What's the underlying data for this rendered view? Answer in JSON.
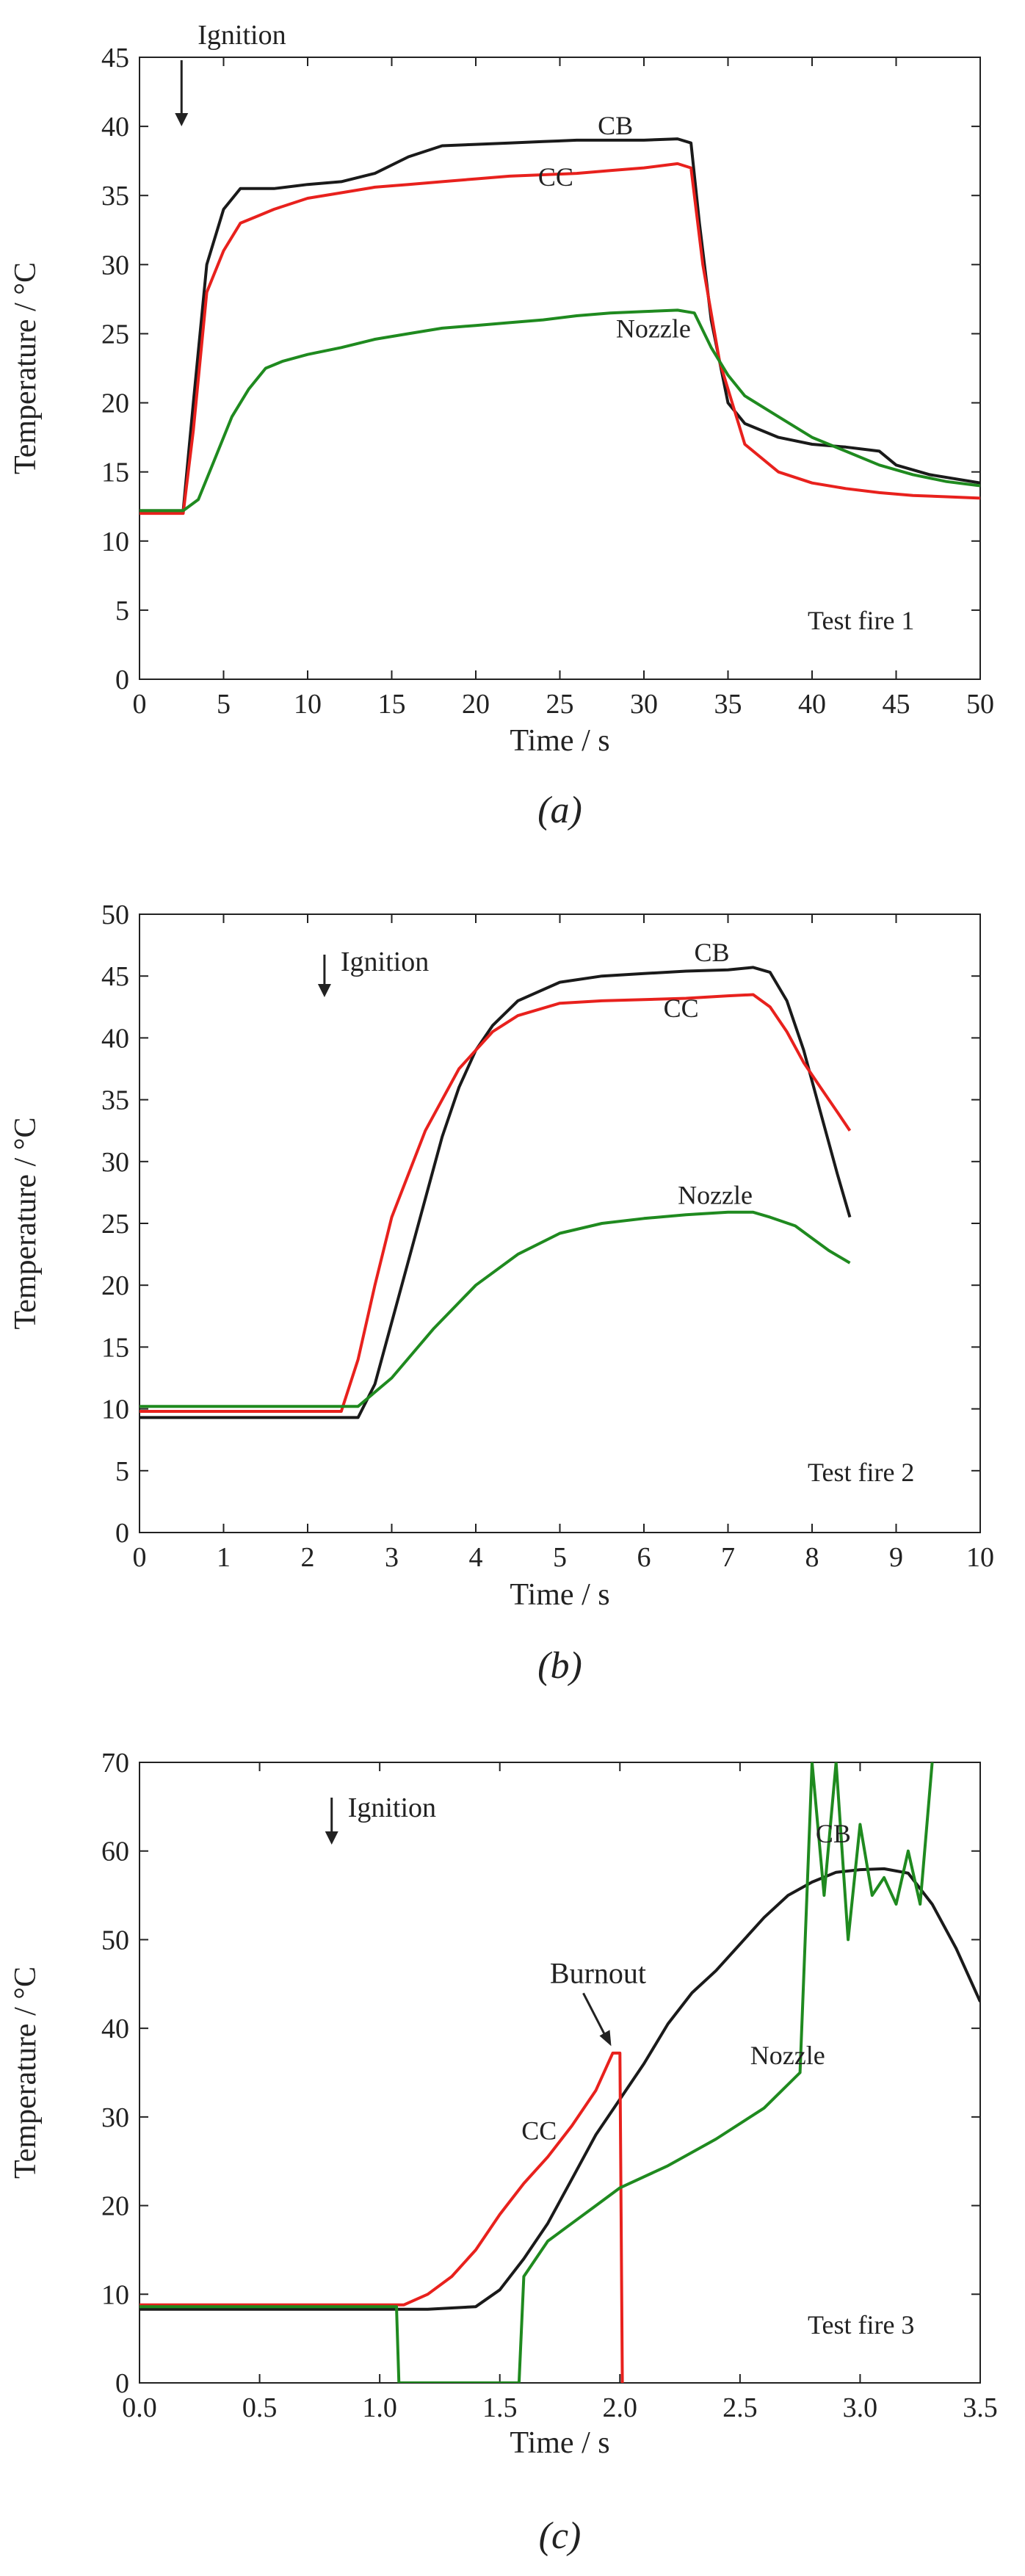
{
  "colors": {
    "CB": "#1a1a1a",
    "CC": "#e8211d",
    "Nozzle": "#1f8a1f",
    "axis": "#222222"
  },
  "chart_data": [
    {
      "type": "line",
      "panel_label": "(a)",
      "annotation": "Test fire 1",
      "event": "Ignition",
      "xlabel": "Time / s",
      "ylabel": "Temperature / °C",
      "xlim": [
        0,
        50
      ],
      "ylim": [
        0,
        45
      ],
      "xticks": [
        0,
        5,
        10,
        15,
        20,
        25,
        30,
        35,
        40,
        45,
        50
      ],
      "yticks": [
        0,
        5,
        10,
        15,
        20,
        25,
        30,
        35,
        40,
        45
      ],
      "ignition_x": 2.5,
      "series": [
        {
          "name": "CB",
          "x": [
            0,
            2.6,
            3.2,
            4.0,
            5.0,
            6.0,
            7.0,
            8.0,
            10,
            12,
            14,
            16,
            18,
            20,
            22,
            24,
            26,
            28,
            30,
            32,
            32.8,
            33.3,
            34,
            35,
            36,
            38,
            40,
            42,
            44,
            45,
            47,
            50
          ],
          "y": [
            12.2,
            12.2,
            20,
            30,
            34,
            35.5,
            35.5,
            35.5,
            35.8,
            36.0,
            36.6,
            37.8,
            38.6,
            38.7,
            38.8,
            38.9,
            39.0,
            39.0,
            39.0,
            39.1,
            38.8,
            33,
            26,
            20,
            18.5,
            17.5,
            17.0,
            16.8,
            16.5,
            15.5,
            14.8,
            14.2
          ]
        },
        {
          "name": "CC",
          "x": [
            0,
            2.6,
            3.2,
            4.0,
            5.0,
            6.0,
            7.0,
            8.0,
            10,
            12,
            14,
            16,
            18,
            20,
            22,
            24,
            26,
            28,
            30,
            32,
            32.8,
            33.5,
            34.5,
            36,
            38,
            40,
            42,
            44,
            46,
            48,
            50
          ],
          "y": [
            12.0,
            12.0,
            18,
            28,
            31,
            33,
            33.5,
            34,
            34.8,
            35.2,
            35.6,
            35.8,
            36.0,
            36.2,
            36.4,
            36.5,
            36.6,
            36.8,
            37.0,
            37.3,
            37.0,
            30,
            23,
            17,
            15,
            14.2,
            13.8,
            13.5,
            13.3,
            13.2,
            13.1
          ]
        },
        {
          "name": "Nozzle",
          "x": [
            0,
            2.6,
            3.5,
            4.5,
            5.5,
            6.5,
            7.5,
            8.5,
            10,
            12,
            14,
            16,
            18,
            20,
            22,
            24,
            26,
            28,
            30,
            32,
            33,
            34,
            35,
            36,
            38,
            40,
            42,
            44,
            46,
            48,
            50
          ],
          "y": [
            12.2,
            12.2,
            13,
            16,
            19,
            21,
            22.5,
            23,
            23.5,
            24.0,
            24.6,
            25.0,
            25.4,
            25.6,
            25.8,
            26.0,
            26.3,
            26.5,
            26.6,
            26.7,
            26.5,
            24,
            22,
            20.5,
            19,
            17.5,
            16.5,
            15.5,
            14.8,
            14.3,
            14.0
          ]
        }
      ],
      "labels": [
        {
          "text": "CB",
          "x": 40.5
        },
        {
          "text": "CC",
          "x": 36
        },
        {
          "text": "Nozzle",
          "x": 24.5
        }
      ]
    },
    {
      "type": "line",
      "panel_label": "(b)",
      "annotation": "Test fire 2",
      "event": "Ignition",
      "xlabel": "Time / s",
      "ylabel": "Temperature / °C",
      "xlim": [
        0,
        10
      ],
      "ylim": [
        0,
        50
      ],
      "xticks": [
        0,
        1,
        2,
        3,
        4,
        5,
        6,
        7,
        8,
        9,
        10
      ],
      "yticks": [
        0,
        5,
        10,
        15,
        20,
        25,
        30,
        35,
        40,
        45,
        50
      ],
      "ignition_x": 2.2,
      "series": [
        {
          "name": "CB",
          "x": [
            0,
            2.6,
            2.8,
            3.0,
            3.2,
            3.4,
            3.6,
            3.8,
            4.0,
            4.2,
            4.5,
            5.0,
            5.5,
            6.0,
            6.5,
            7.0,
            7.3,
            7.5,
            7.7,
            7.9,
            8.1,
            8.3,
            8.45
          ],
          "y": [
            9.3,
            9.3,
            12,
            17,
            22,
            27,
            32,
            36,
            39,
            41,
            43,
            44.5,
            45.0,
            45.2,
            45.4,
            45.5,
            45.7,
            45.3,
            43,
            39,
            34,
            29,
            25.5
          ]
        },
        {
          "name": "CC",
          "x": [
            0,
            2.4,
            2.6,
            2.8,
            3.0,
            3.2,
            3.4,
            3.6,
            3.8,
            4.0,
            4.2,
            4.5,
            5.0,
            5.5,
            6.0,
            6.5,
            7.0,
            7.3,
            7.5,
            7.7,
            7.9,
            8.1,
            8.3,
            8.45
          ],
          "y": [
            9.8,
            9.8,
            14,
            20,
            25.5,
            29,
            32.5,
            35,
            37.5,
            39,
            40.5,
            41.8,
            42.8,
            43.0,
            43.1,
            43.2,
            43.4,
            43.5,
            42.5,
            40.5,
            38,
            36,
            34,
            32.5
          ]
        },
        {
          "name": "Nozzle",
          "x": [
            0,
            2.6,
            3.0,
            3.5,
            4.0,
            4.5,
            5.0,
            5.5,
            6.0,
            6.5,
            7.0,
            7.3,
            7.5,
            7.8,
            8.0,
            8.2,
            8.45
          ],
          "y": [
            10.2,
            10.2,
            12.5,
            16.5,
            20,
            22.5,
            24.2,
            25.0,
            25.4,
            25.7,
            25.9,
            25.9,
            25.5,
            24.8,
            23.8,
            22.8,
            21.8
          ]
        }
      ],
      "labels": [
        {
          "text": "CB",
          "x": 46.5
        },
        {
          "text": "CC",
          "x": 41
        },
        {
          "text": "Nozzle",
          "x": 28
        }
      ]
    },
    {
      "type": "line",
      "panel_label": "(c)",
      "annotation": "Test fire 3",
      "event": "Ignition",
      "callout": "Burnout",
      "xlabel": "Time / s",
      "ylabel": "Temperature / °C",
      "xlim": [
        0,
        3.5
      ],
      "ylim": [
        0,
        70
      ],
      "xticks": [
        0.0,
        0.5,
        1.0,
        1.5,
        2.0,
        2.5,
        3.0,
        3.5
      ],
      "yticks": [
        0,
        10,
        20,
        30,
        40,
        50,
        60,
        70
      ],
      "ignition_x": 0.8,
      "series": [
        {
          "name": "CB",
          "x": [
            0,
            1.2,
            1.4,
            1.5,
            1.6,
            1.7,
            1.8,
            1.9,
            2.0,
            2.1,
            2.2,
            2.3,
            2.4,
            2.5,
            2.6,
            2.7,
            2.8,
            2.9,
            3.0,
            3.1,
            3.2,
            3.3,
            3.4,
            3.5
          ],
          "y": [
            8.3,
            8.3,
            8.6,
            10.5,
            14,
            18,
            23,
            28,
            32,
            36,
            40.5,
            44,
            46.5,
            49.5,
            52.5,
            55,
            56.5,
            57.6,
            57.9,
            58.0,
            57.5,
            54,
            49,
            43
          ]
        },
        {
          "name": "CC",
          "x": [
            0,
            1.1,
            1.2,
            1.3,
            1.4,
            1.5,
            1.6,
            1.7,
            1.8,
            1.9,
            1.97,
            2.0,
            2.01
          ],
          "y": [
            8.8,
            8.8,
            10,
            12,
            15,
            19,
            22.5,
            25.5,
            29,
            33,
            37.2,
            37.2,
            0
          ]
        },
        {
          "name": "Nozzle",
          "x": [
            0,
            1.07,
            1.08,
            1.09,
            1.58,
            1.6,
            1.7,
            1.8,
            1.9,
            2.0,
            2.2,
            2.4,
            2.6,
            2.75,
            2.8,
            2.85,
            2.9,
            2.95,
            3.0,
            3.05,
            3.1,
            3.15,
            3.2,
            3.25,
            3.3
          ],
          "y": [
            8.6,
            8.6,
            0,
            0,
            0,
            12,
            16,
            18,
            20,
            22,
            24.5,
            27.5,
            31,
            35,
            70,
            55,
            70,
            50,
            63,
            55,
            57,
            54,
            60,
            54,
            70
          ]
        }
      ],
      "labels": [
        {
          "text": "CB",
          "x": 3.05
        },
        {
          "text": "CC",
          "x": 1.65
        },
        {
          "text": "Nozzle",
          "x": 2.9
        }
      ]
    }
  ]
}
